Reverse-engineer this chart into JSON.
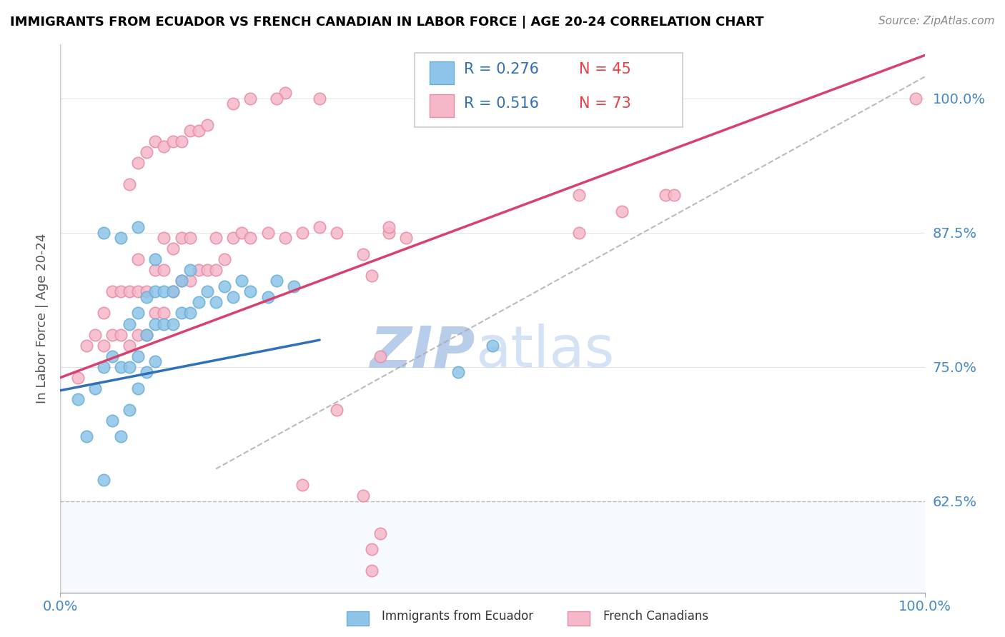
{
  "title": "IMMIGRANTS FROM ECUADOR VS FRENCH CANADIAN IN LABOR FORCE | AGE 20-24 CORRELATION CHART",
  "source": "Source: ZipAtlas.com",
  "ylabel": "In Labor Force | Age 20-24",
  "xlim": [
    0.0,
    1.0
  ],
  "ylim": [
    0.54,
    1.05
  ],
  "yticks": [
    0.625,
    0.75,
    0.875,
    1.0
  ],
  "ytick_labels": [
    "62.5%",
    "75.0%",
    "87.5%",
    "100.0%"
  ],
  "xticks": [
    0.0,
    1.0
  ],
  "xtick_labels": [
    "0.0%",
    "100.0%"
  ],
  "legend_r_blue": "R = 0.276",
  "legend_n_blue": "N = 45",
  "legend_r_pink": "R = 0.516",
  "legend_n_pink": "N = 73",
  "blue_color": "#8dc4e8",
  "blue_edge_color": "#6aaed6",
  "pink_color": "#f5b8c8",
  "pink_edge_color": "#e88aa8",
  "blue_trend_color": "#3070b8",
  "pink_trend_color": "#d84070",
  "ref_line_color": "#aaaaaa",
  "watermark_zip": "ZIP",
  "watermark_atlas": "atlas",
  "watermark_color": "#c8d8f0",
  "subregion_color": "#eef4fc",
  "blue_scatter_x": [
    0.02,
    0.03,
    0.04,
    0.05,
    0.05,
    0.06,
    0.06,
    0.07,
    0.07,
    0.08,
    0.08,
    0.08,
    0.09,
    0.09,
    0.09,
    0.1,
    0.1,
    0.1,
    0.11,
    0.11,
    0.11,
    0.11,
    0.12,
    0.12,
    0.13,
    0.13,
    0.14,
    0.14,
    0.15,
    0.15,
    0.16,
    0.17,
    0.18,
    0.19,
    0.2,
    0.21,
    0.22,
    0.24,
    0.25,
    0.27,
    0.05,
    0.07,
    0.09,
    0.46,
    0.5
  ],
  "blue_scatter_y": [
    0.72,
    0.685,
    0.73,
    0.645,
    0.75,
    0.7,
    0.76,
    0.685,
    0.75,
    0.71,
    0.75,
    0.79,
    0.73,
    0.76,
    0.8,
    0.745,
    0.78,
    0.815,
    0.755,
    0.79,
    0.82,
    0.85,
    0.79,
    0.82,
    0.79,
    0.82,
    0.8,
    0.83,
    0.8,
    0.84,
    0.81,
    0.82,
    0.81,
    0.825,
    0.815,
    0.83,
    0.82,
    0.815,
    0.83,
    0.825,
    0.875,
    0.87,
    0.88,
    0.745,
    0.77
  ],
  "pink_scatter_x": [
    0.02,
    0.03,
    0.04,
    0.05,
    0.05,
    0.06,
    0.06,
    0.07,
    0.07,
    0.08,
    0.08,
    0.09,
    0.09,
    0.09,
    0.1,
    0.1,
    0.11,
    0.11,
    0.12,
    0.12,
    0.12,
    0.13,
    0.13,
    0.14,
    0.14,
    0.15,
    0.15,
    0.16,
    0.17,
    0.18,
    0.18,
    0.19,
    0.2,
    0.21,
    0.22,
    0.24,
    0.26,
    0.28,
    0.3,
    0.32,
    0.35,
    0.38,
    0.38,
    0.4,
    0.32,
    0.6,
    0.6,
    0.65,
    0.7,
    0.71,
    0.08,
    0.09,
    0.1,
    0.11,
    0.12,
    0.13,
    0.14,
    0.15,
    0.16,
    0.17,
    0.22,
    0.26,
    0.2,
    0.25,
    0.3,
    0.28,
    0.35,
    0.36,
    0.36,
    0.37,
    0.99,
    0.36,
    0.37
  ],
  "pink_scatter_y": [
    0.74,
    0.77,
    0.78,
    0.77,
    0.8,
    0.78,
    0.82,
    0.78,
    0.82,
    0.77,
    0.82,
    0.78,
    0.82,
    0.85,
    0.78,
    0.82,
    0.8,
    0.84,
    0.8,
    0.84,
    0.87,
    0.82,
    0.86,
    0.83,
    0.87,
    0.83,
    0.87,
    0.84,
    0.84,
    0.84,
    0.87,
    0.85,
    0.87,
    0.875,
    0.87,
    0.875,
    0.87,
    0.875,
    0.88,
    0.875,
    0.855,
    0.875,
    0.88,
    0.87,
    0.71,
    0.875,
    0.91,
    0.895,
    0.91,
    0.91,
    0.92,
    0.94,
    0.95,
    0.96,
    0.955,
    0.96,
    0.96,
    0.97,
    0.97,
    0.975,
    1.0,
    1.005,
    0.995,
    1.0,
    1.0,
    0.64,
    0.63,
    0.56,
    0.58,
    0.595,
    1.0,
    0.835,
    0.76
  ],
  "blue_trend_x": [
    0.0,
    0.3
  ],
  "blue_trend_y": [
    0.728,
    0.775
  ],
  "pink_trend_x": [
    0.0,
    1.0
  ],
  "pink_trend_y": [
    0.74,
    1.04
  ],
  "ref_line_x": [
    0.18,
    1.0
  ],
  "ref_line_y": [
    0.655,
    1.02
  ]
}
